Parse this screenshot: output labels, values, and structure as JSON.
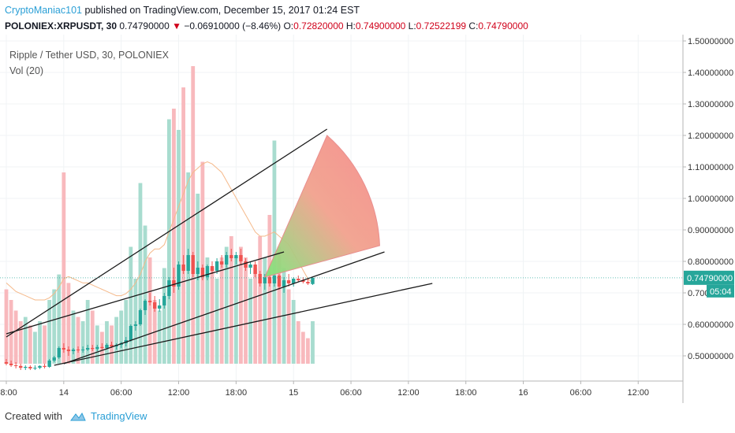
{
  "header": {
    "author": "CryptoManiac101",
    "published": " published on TradingView.com, December 15, 2017 01:24 EST",
    "symbol": "POLONIEX:XRPUSDT, 30",
    "price": "0.74790000",
    "change": "−0.06910000 (−8.46%)",
    "o_label": "O:",
    "o_value": "0.72820000",
    "h_label": "H:",
    "h_value": "0.74900000",
    "l_label": "L:",
    "l_value": "0.72522199",
    "c_label": "C:",
    "c_value": "0.74790000"
  },
  "footer": {
    "created_with": "Created with",
    "brand": "TradingView"
  },
  "chart_data": {
    "type": "candlestick",
    "title": "Ripple / Tether USD, 30, POLONIEX",
    "indicator": "Vol (20)",
    "ylim": [
      0.42,
      1.52
    ],
    "y_ticks": [
      0.5,
      0.6,
      0.7,
      0.8,
      0.9,
      1.0,
      1.1,
      1.2,
      1.3,
      1.4,
      1.5
    ],
    "y_tick_labels": [
      "0.50000000",
      "0.60000000",
      "0.700",
      "0.80000000",
      "0.90000000",
      "1.00000000",
      "1.10000000",
      "1.20000000",
      "1.30000000",
      "1.40000000",
      "1.50000000"
    ],
    "last_price": "0.74790000",
    "countdown": "05:04",
    "x_ticks": [
      {
        "bar": 0,
        "label": "18:00"
      },
      {
        "bar": 12,
        "label": "14"
      },
      {
        "bar": 24,
        "label": "06:00"
      },
      {
        "bar": 36,
        "label": "12:00"
      },
      {
        "bar": 48,
        "label": "18:00"
      },
      {
        "bar": 60,
        "label": "15"
      },
      {
        "bar": 72,
        "label": "06:00"
      },
      {
        "bar": 84,
        "label": "12:00"
      },
      {
        "bar": 96,
        "label": "18:00"
      },
      {
        "bar": 108,
        "label": "16"
      },
      {
        "bar": 120,
        "label": "06:00"
      },
      {
        "bar": 132,
        "label": "12:00"
      }
    ],
    "candles": [
      {
        "o": 0.48,
        "h": 0.49,
        "l": 0.47,
        "c": 0.475,
        "v": 0.35
      },
      {
        "o": 0.475,
        "h": 0.485,
        "l": 0.465,
        "c": 0.47,
        "v": 0.3
      },
      {
        "o": 0.47,
        "h": 0.48,
        "l": 0.46,
        "c": 0.468,
        "v": 0.25
      },
      {
        "o": 0.468,
        "h": 0.475,
        "l": 0.455,
        "c": 0.462,
        "v": 0.2
      },
      {
        "o": 0.462,
        "h": 0.47,
        "l": 0.455,
        "c": 0.465,
        "v": 0.22
      },
      {
        "o": 0.465,
        "h": 0.47,
        "l": 0.455,
        "c": 0.46,
        "v": 0.18
      },
      {
        "o": 0.46,
        "h": 0.47,
        "l": 0.455,
        "c": 0.462,
        "v": 0.15
      },
      {
        "o": 0.462,
        "h": 0.47,
        "l": 0.458,
        "c": 0.468,
        "v": 0.2
      },
      {
        "o": 0.468,
        "h": 0.475,
        "l": 0.46,
        "c": 0.465,
        "v": 0.18
      },
      {
        "o": 0.465,
        "h": 0.49,
        "l": 0.462,
        "c": 0.485,
        "v": 0.3
      },
      {
        "o": 0.485,
        "h": 0.5,
        "l": 0.48,
        "c": 0.495,
        "v": 0.35
      },
      {
        "o": 0.495,
        "h": 0.53,
        "l": 0.49,
        "c": 0.525,
        "v": 0.42
      },
      {
        "o": 0.525,
        "h": 0.54,
        "l": 0.51,
        "c": 0.52,
        "v": 0.9
      },
      {
        "o": 0.52,
        "h": 0.53,
        "l": 0.5,
        "c": 0.515,
        "v": 0.38
      },
      {
        "o": 0.515,
        "h": 0.525,
        "l": 0.505,
        "c": 0.52,
        "v": 0.25
      },
      {
        "o": 0.52,
        "h": 0.53,
        "l": 0.51,
        "c": 0.518,
        "v": 0.22
      },
      {
        "o": 0.518,
        "h": 0.53,
        "l": 0.51,
        "c": 0.52,
        "v": 0.2
      },
      {
        "o": 0.52,
        "h": 0.535,
        "l": 0.515,
        "c": 0.525,
        "v": 0.3
      },
      {
        "o": 0.525,
        "h": 0.535,
        "l": 0.515,
        "c": 0.522,
        "v": 0.25
      },
      {
        "o": 0.522,
        "h": 0.535,
        "l": 0.515,
        "c": 0.528,
        "v": 0.18
      },
      {
        "o": 0.528,
        "h": 0.54,
        "l": 0.52,
        "c": 0.525,
        "v": 0.15
      },
      {
        "o": 0.525,
        "h": 0.54,
        "l": 0.52,
        "c": 0.535,
        "v": 0.2
      },
      {
        "o": 0.535,
        "h": 0.545,
        "l": 0.525,
        "c": 0.53,
        "v": 0.18
      },
      {
        "o": 0.53,
        "h": 0.54,
        "l": 0.52,
        "c": 0.535,
        "v": 0.22
      },
      {
        "o": 0.535,
        "h": 0.545,
        "l": 0.525,
        "c": 0.54,
        "v": 0.25
      },
      {
        "o": 0.54,
        "h": 0.56,
        "l": 0.53,
        "c": 0.55,
        "v": 0.3
      },
      {
        "o": 0.55,
        "h": 0.6,
        "l": 0.545,
        "c": 0.595,
        "v": 0.55
      },
      {
        "o": 0.595,
        "h": 0.61,
        "l": 0.58,
        "c": 0.6,
        "v": 0.4
      },
      {
        "o": 0.6,
        "h": 0.65,
        "l": 0.595,
        "c": 0.645,
        "v": 0.85
      },
      {
        "o": 0.645,
        "h": 0.68,
        "l": 0.63,
        "c": 0.675,
        "v": 0.65
      },
      {
        "o": 0.675,
        "h": 0.7,
        "l": 0.66,
        "c": 0.67,
        "v": 0.5
      },
      {
        "o": 0.67,
        "h": 0.69,
        "l": 0.64,
        "c": 0.65,
        "v": 0.3
      },
      {
        "o": 0.65,
        "h": 0.68,
        "l": 0.64,
        "c": 0.66,
        "v": 0.25
      },
      {
        "o": 0.66,
        "h": 0.7,
        "l": 0.65,
        "c": 0.69,
        "v": 0.45
      },
      {
        "o": 0.69,
        "h": 0.75,
        "l": 0.68,
        "c": 0.74,
        "v": 1.15
      },
      {
        "o": 0.74,
        "h": 0.78,
        "l": 0.7,
        "c": 0.72,
        "v": 1.2
      },
      {
        "o": 0.72,
        "h": 0.8,
        "l": 0.71,
        "c": 0.79,
        "v": 1.1
      },
      {
        "o": 0.79,
        "h": 0.82,
        "l": 0.76,
        "c": 0.77,
        "v": 1.3
      },
      {
        "o": 0.77,
        "h": 0.84,
        "l": 0.76,
        "c": 0.82,
        "v": 0.9
      },
      {
        "o": 0.82,
        "h": 0.83,
        "l": 0.75,
        "c": 0.76,
        "v": 1.4
      },
      {
        "o": 0.76,
        "h": 0.8,
        "l": 0.74,
        "c": 0.78,
        "v": 0.8
      },
      {
        "o": 0.78,
        "h": 0.79,
        "l": 0.74,
        "c": 0.75,
        "v": 0.95
      },
      {
        "o": 0.75,
        "h": 0.79,
        "l": 0.74,
        "c": 0.785,
        "v": 0.5
      },
      {
        "o": 0.785,
        "h": 0.8,
        "l": 0.76,
        "c": 0.77,
        "v": 0.45
      },
      {
        "o": 0.77,
        "h": 0.81,
        "l": 0.76,
        "c": 0.8,
        "v": 0.4
      },
      {
        "o": 0.8,
        "h": 0.82,
        "l": 0.78,
        "c": 0.79,
        "v": 0.5
      },
      {
        "o": 0.79,
        "h": 0.83,
        "l": 0.78,
        "c": 0.82,
        "v": 0.55
      },
      {
        "o": 0.82,
        "h": 0.84,
        "l": 0.8,
        "c": 0.81,
        "v": 0.6
      },
      {
        "o": 0.81,
        "h": 0.83,
        "l": 0.79,
        "c": 0.82,
        "v": 0.5
      },
      {
        "o": 0.82,
        "h": 0.84,
        "l": 0.79,
        "c": 0.8,
        "v": 0.55
      },
      {
        "o": 0.8,
        "h": 0.81,
        "l": 0.77,
        "c": 0.78,
        "v": 0.5
      },
      {
        "o": 0.78,
        "h": 0.8,
        "l": 0.76,
        "c": 0.79,
        "v": 0.4
      },
      {
        "o": 0.79,
        "h": 0.8,
        "l": 0.75,
        "c": 0.76,
        "v": 0.45
      },
      {
        "o": 0.76,
        "h": 0.77,
        "l": 0.72,
        "c": 0.73,
        "v": 0.6
      },
      {
        "o": 0.73,
        "h": 0.76,
        "l": 0.71,
        "c": 0.75,
        "v": 0.5
      },
      {
        "o": 0.75,
        "h": 0.77,
        "l": 0.72,
        "c": 0.73,
        "v": 0.7
      },
      {
        "o": 0.73,
        "h": 0.76,
        "l": 0.72,
        "c": 0.755,
        "v": 1.05
      },
      {
        "o": 0.755,
        "h": 0.76,
        "l": 0.71,
        "c": 0.72,
        "v": 0.55
      },
      {
        "o": 0.72,
        "h": 0.75,
        "l": 0.7,
        "c": 0.74,
        "v": 0.45
      },
      {
        "o": 0.74,
        "h": 0.76,
        "l": 0.72,
        "c": 0.73,
        "v": 0.35
      },
      {
        "o": 0.73,
        "h": 0.75,
        "l": 0.72,
        "c": 0.745,
        "v": 0.3
      },
      {
        "o": 0.745,
        "h": 0.755,
        "l": 0.735,
        "c": 0.74,
        "v": 0.2
      },
      {
        "o": 0.74,
        "h": 0.75,
        "l": 0.73,
        "c": 0.735,
        "v": 0.15
      },
      {
        "o": 0.735,
        "h": 0.745,
        "l": 0.725,
        "c": 0.73,
        "v": 0.12
      },
      {
        "o": 0.728,
        "h": 0.749,
        "l": 0.725,
        "c": 0.7479,
        "v": 0.2
      }
    ],
    "trend_lines": [
      {
        "from": {
          "bar": 0,
          "price": 0.56
        },
        "to": {
          "bar": 67,
          "price": 1.22
        }
      },
      {
        "from": {
          "bar": 0,
          "price": 0.57
        },
        "to": {
          "bar": 58,
          "price": 0.83
        }
      },
      {
        "from": {
          "bar": 12,
          "price": 0.475
        },
        "to": {
          "bar": 79,
          "price": 0.83
        }
      },
      {
        "from": {
          "bar": 10,
          "price": 0.47
        },
        "to": {
          "bar": 89,
          "price": 0.73
        }
      }
    ],
    "fan": {
      "center": {
        "bar": 54,
        "price": 0.75
      },
      "end1": {
        "bar": 67,
        "price": 1.2
      },
      "end2": {
        "bar": 78,
        "price": 0.85
      }
    },
    "vol_ma": [
      0.38,
      0.36,
      0.34,
      0.33,
      0.32,
      0.31,
      0.3,
      0.3,
      0.3,
      0.31,
      0.33,
      0.36,
      0.4,
      0.41,
      0.4,
      0.39,
      0.38,
      0.38,
      0.37,
      0.36,
      0.35,
      0.34,
      0.33,
      0.32,
      0.32,
      0.33,
      0.35,
      0.38,
      0.42,
      0.48,
      0.52,
      0.54,
      0.54,
      0.56,
      0.62,
      0.68,
      0.74,
      0.8,
      0.86,
      0.9,
      0.92,
      0.94,
      0.95,
      0.94,
      0.92,
      0.9,
      0.86,
      0.82,
      0.78,
      0.74,
      0.7,
      0.66,
      0.62,
      0.6,
      0.6,
      0.61,
      0.62,
      0.6,
      0.58,
      0.56,
      0.52,
      0.48,
      0.44,
      0.4,
      0.38
    ],
    "colors": {
      "up": "#26a69a",
      "down": "#ef5350",
      "vol_up": "#a8dccf",
      "vol_down": "#f8b9bd",
      "last_price": "#26a69a"
    }
  }
}
